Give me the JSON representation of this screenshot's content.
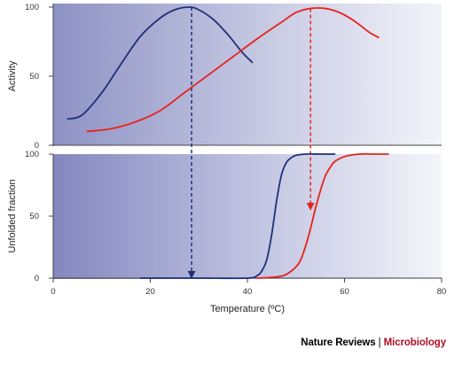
{
  "chart_data": [
    {
      "type": "line",
      "id": "activity",
      "ylabel": "Activity",
      "xlim": [
        0,
        80
      ],
      "ylim": [
        0,
        100
      ],
      "yticks": [
        "0",
        "50",
        "100"
      ],
      "series": [
        {
          "color": "#1f2f7a",
          "x": [
            3,
            6,
            10,
            14,
            18,
            22,
            25,
            28,
            30,
            33,
            36,
            39,
            41
          ],
          "y": [
            19,
            22,
            38,
            59,
            79,
            92,
            98,
            100,
            98,
            91,
            80,
            67,
            60
          ]
        },
        {
          "color": "#e8221c",
          "x": [
            7,
            12,
            17,
            22,
            27,
            32,
            37,
            42,
            47,
            50,
            53,
            56,
            59,
            62,
            65,
            67
          ],
          "y": [
            10,
            12,
            17,
            25,
            38,
            51,
            64,
            77,
            89,
            96,
            99,
            99,
            96,
            90,
            82,
            78
          ]
        }
      ],
      "arrows": [
        {
          "color": "#1f2f7a",
          "x": 28.5,
          "from_y": 100,
          "to_panel": "unfolded",
          "to_y": 0
        },
        {
          "color": "#e8221c",
          "x": 53,
          "from_y": 99,
          "to_panel": "unfolded",
          "to_y": 55
        }
      ]
    },
    {
      "type": "line",
      "id": "unfolded",
      "ylabel": "Unfolded fraction",
      "xlabel": "Temperature (ºC)",
      "xlim": [
        0,
        80
      ],
      "ylim": [
        0,
        100
      ],
      "xticks": [
        "0",
        "20",
        "40",
        "60",
        "80"
      ],
      "yticks": [
        "0",
        "50",
        "100"
      ],
      "series": [
        {
          "color": "#1f2f7a",
          "x": [
            18,
            30,
            40,
            42,
            43,
            44,
            45,
            46,
            47,
            48,
            49,
            50,
            52,
            55,
            58
          ],
          "y": [
            0,
            0,
            0,
            2,
            6,
            15,
            35,
            62,
            83,
            93,
            97,
            99,
            100,
            100,
            100
          ]
        },
        {
          "color": "#e8221c",
          "x": [
            42,
            46,
            48,
            50,
            51,
            52,
            53,
            54,
            55,
            56,
            57,
            58,
            60,
            63,
            66,
            69
          ],
          "y": [
            0,
            1,
            3,
            9,
            15,
            26,
            40,
            56,
            70,
            82,
            89,
            94,
            98,
            100,
            100,
            100
          ]
        }
      ]
    }
  ],
  "credit": {
    "publisher": "Nature Reviews",
    "separator": "|",
    "journal": "Microbiology"
  }
}
